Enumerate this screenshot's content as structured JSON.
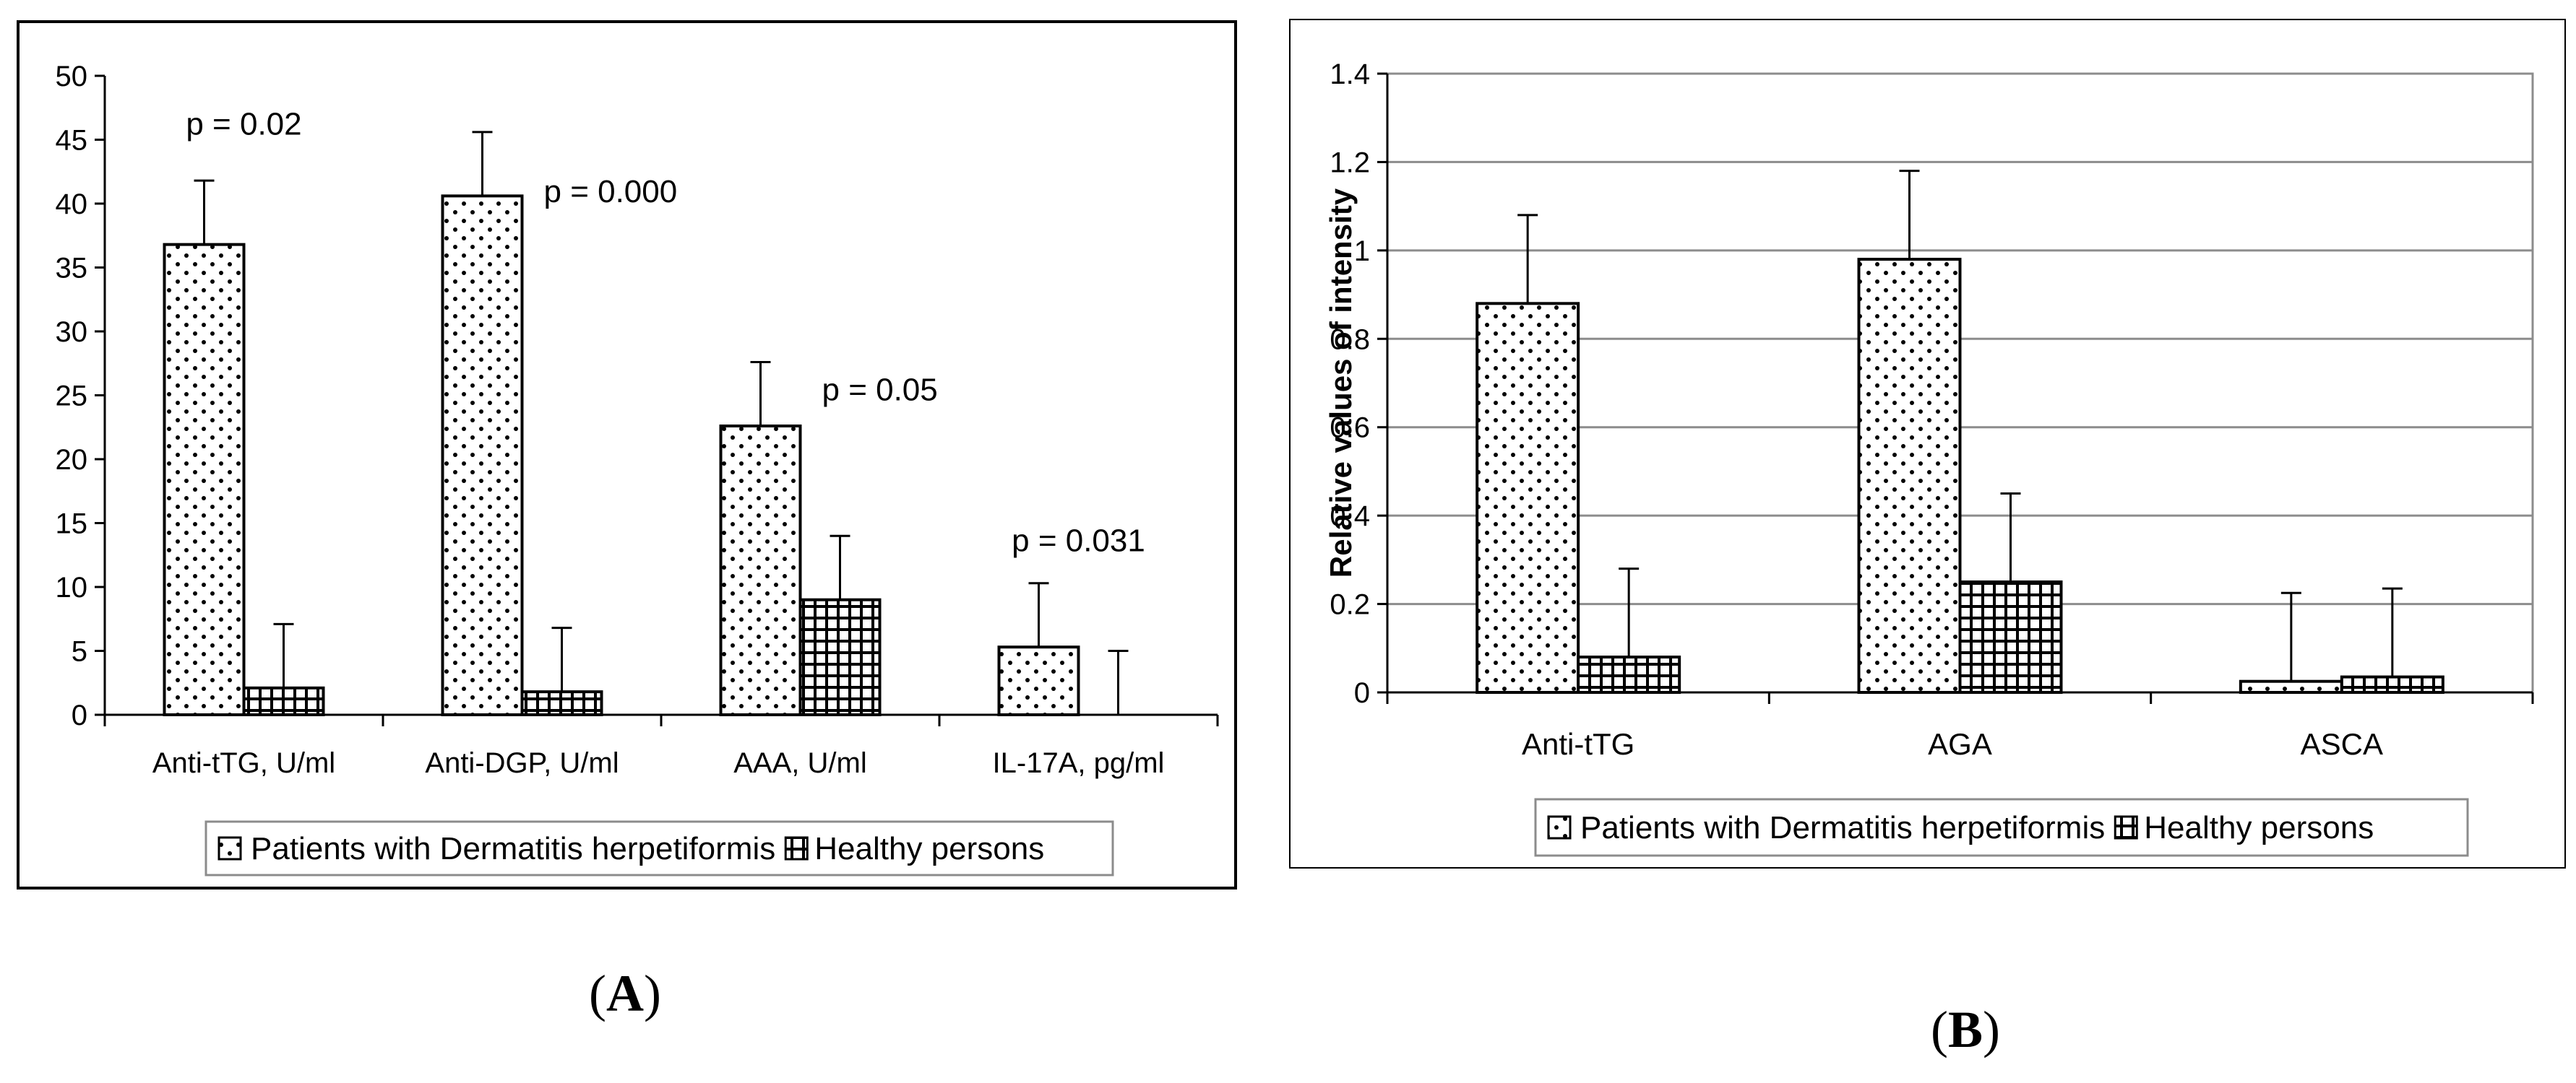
{
  "panel_labels": {
    "a": "A",
    "b": "B"
  },
  "legend": {
    "patients": "Patients with Dermatitis herpetiformis",
    "healthy": "Healthy persons"
  },
  "colors": {
    "bar_fill": "#ffffff",
    "stroke": "#000000",
    "gridline": "#8c8c8c"
  },
  "chart_data": [
    {
      "id": "A",
      "type": "bar",
      "title": "",
      "xlabel": "",
      "ylabel": "",
      "categories": [
        "Anti-tTG, U/ml",
        "Anti-DGP, U/ml",
        "AAA, U/ml",
        "IL-17A, pg/ml"
      ],
      "series": [
        {
          "name": "Patients with Dermatitis herpetiformis",
          "pattern": "dots",
          "values": [
            36.8,
            40.6,
            22.6,
            5.3
          ],
          "error": [
            5.0,
            5.0,
            5.0,
            5.0
          ]
        },
        {
          "name": "Healthy persons",
          "pattern": "grid",
          "values": [
            2.1,
            1.8,
            9.0,
            0
          ],
          "error": [
            5.0,
            5.0,
            5.0,
            5.0
          ]
        }
      ],
      "ylim": [
        0,
        50
      ],
      "yticks": [
        0,
        5,
        10,
        15,
        20,
        25,
        30,
        35,
        40,
        45,
        50
      ],
      "annotations": [
        {
          "text": "p = 0.02",
          "category": 0,
          "value": 46.2,
          "pos": "center"
        },
        {
          "text": "p = 0.000",
          "category": 1,
          "value": 40.9,
          "pos": "right"
        },
        {
          "text": "p = 0.05",
          "category": 2,
          "value": 25.4,
          "pos": "right"
        },
        {
          "text": "p = 0.031",
          "category": 3,
          "value": 13.6,
          "pos": "center"
        }
      ],
      "legend_position": "bottom",
      "grid": false
    },
    {
      "id": "B",
      "type": "bar",
      "title": "",
      "xlabel": "",
      "ylabel": "Relative values of intensity",
      "categories": [
        "Anti-tTG",
        "AGA",
        "ASCA"
      ],
      "series": [
        {
          "name": "Patients with Dermatitis herpetiformis",
          "pattern": "dots",
          "values": [
            0.88,
            0.98,
            0.025
          ],
          "error": [
            0.2,
            0.2,
            0.2
          ]
        },
        {
          "name": "Healthy persons",
          "pattern": "grid",
          "values": [
            0.08,
            0.25,
            0.035
          ],
          "error": [
            0.2,
            0.2,
            0.2
          ]
        }
      ],
      "ylim": [
        0,
        1.4
      ],
      "yticks": [
        0,
        0.2,
        0.4,
        0.6,
        0.8,
        1,
        1.2,
        1.4
      ],
      "annotations": [],
      "legend_position": "bottom",
      "grid": true
    }
  ]
}
